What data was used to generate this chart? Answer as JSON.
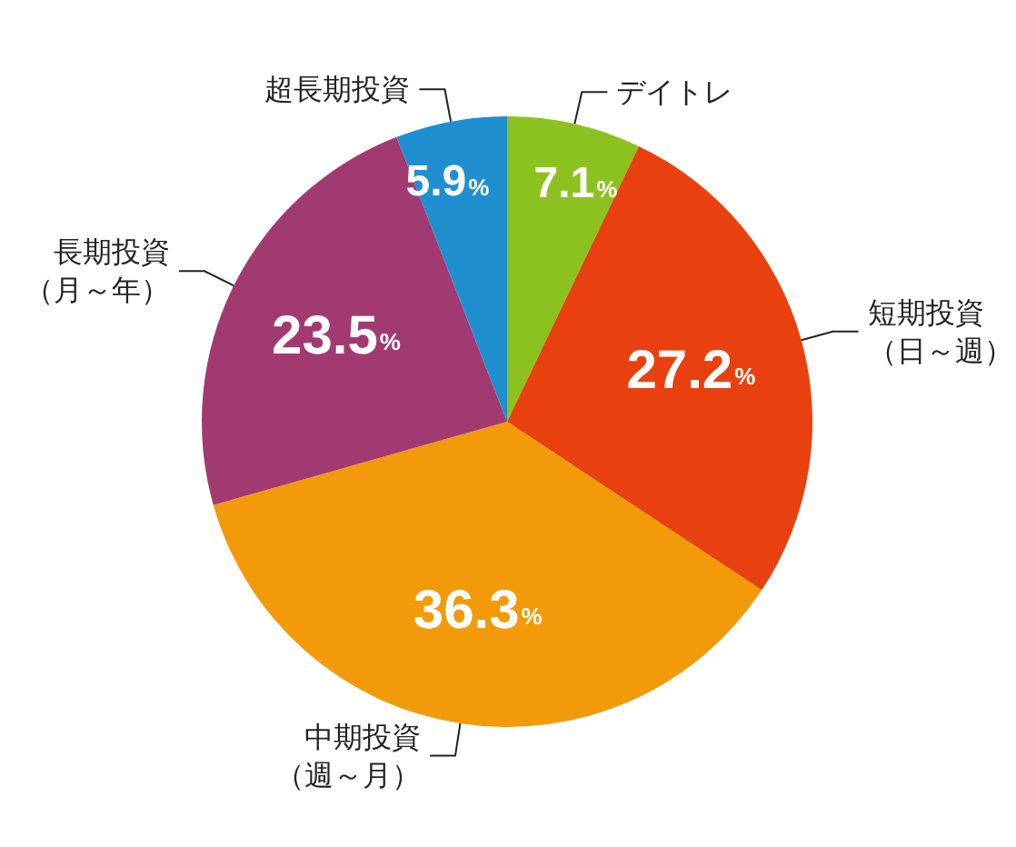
{
  "chart_data": {
    "type": "pie",
    "categories": [
      "デイトレ",
      "短期投資（日～週）",
      "中期投資（週～月）",
      "長期投資（月～年）",
      "超長期投資"
    ],
    "values": [
      7.1,
      27.2,
      36.3,
      23.5,
      5.9
    ],
    "colors": [
      "#8cc21f",
      "#e8400f",
      "#f29a0a",
      "#a23a72",
      "#1f8fd0"
    ],
    "value_labels": [
      "7.1%",
      "27.2%",
      "36.3%",
      "23.5%",
      "5.9%"
    ]
  }
}
